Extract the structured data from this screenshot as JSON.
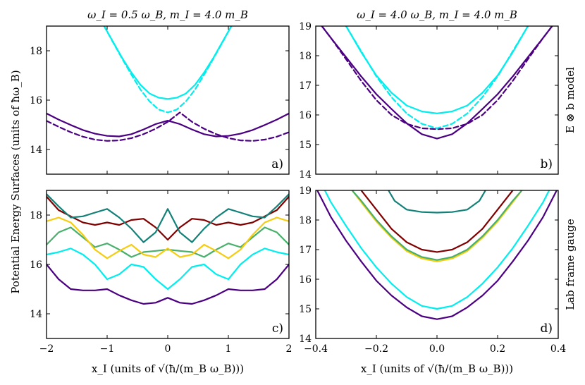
{
  "colors": {
    "purple": "#4b0082",
    "cyan": "#00eeee",
    "teal": "#138178",
    "darkred": "#800000",
    "gold": "#f5cc10",
    "green": "#48b06b"
  },
  "figure": {
    "column_titles": [
      "ω_I = 0.5 ω_B, m_I = 4.0 m_B",
      "ω_I = 4.0 ω_B, m_I = 4.0 m_B"
    ],
    "ylabel": "Potential Energy Surfaces (units of ħω_B)",
    "xlabels": [
      "x_I (units of √(ħ/(m_B ω_B)))",
      "x_I (units of √(ħ/(m_B ω_B)))"
    ],
    "row_labels": [
      "E ⊗ b model",
      "Lab frame gauge"
    ]
  },
  "chart_data": [
    {
      "type": "line",
      "panel_label": "a)",
      "xlim": [
        -2,
        2
      ],
      "ylim": [
        13,
        19
      ],
      "xticks": [
        -2,
        -1,
        0,
        1,
        2
      ],
      "xtick_labels": [],
      "yticks": [
        14,
        16,
        18
      ],
      "ytick_labels": [
        "14",
        "16",
        "18"
      ],
      "series": [
        {
          "color": "purple",
          "dash": false,
          "x": [
            -2,
            -1.8,
            -1.6,
            -1.4,
            -1.2,
            -1,
            -0.8,
            -0.6,
            -0.4,
            -0.2,
            0,
            0.2,
            0.4,
            0.6,
            0.8,
            1,
            1.2,
            1.4,
            1.6,
            1.8,
            2
          ],
          "y": [
            15.46,
            15.21,
            14.99,
            14.79,
            14.64,
            14.55,
            14.53,
            14.62,
            14.81,
            15.03,
            15.17,
            15.03,
            14.81,
            14.62,
            14.53,
            14.55,
            14.64,
            14.79,
            14.99,
            15.21,
            15.46
          ]
        },
        {
          "color": "purple",
          "dash": true,
          "x": [
            -2,
            -1.8,
            -1.6,
            -1.4,
            -1.2,
            -1,
            -0.8,
            -0.6,
            -0.4,
            -0.2,
            0,
            0.2,
            0.4,
            0.6,
            0.8,
            1,
            1.2,
            1.4,
            1.6,
            1.8,
            2
          ],
          "y": [
            15.16,
            14.92,
            14.7,
            14.52,
            14.4,
            14.35,
            14.37,
            14.46,
            14.62,
            14.84,
            15.12,
            15.5,
            15.12,
            14.84,
            14.62,
            14.46,
            14.37,
            14.35,
            14.4,
            14.52,
            14.7
          ]
        },
        {
          "color": "cyan",
          "dash": false,
          "x": [
            -1.05,
            -0.9,
            -0.75,
            -0.6,
            -0.45,
            -0.3,
            -0.15,
            0,
            0.15,
            0.3,
            0.45,
            0.6,
            0.75,
            0.9,
            1.05
          ],
          "y": [
            19,
            18.35,
            17.7,
            17.12,
            16.62,
            16.27,
            16.1,
            16.05,
            16.1,
            16.27,
            16.62,
            17.12,
            17.7,
            18.35,
            19
          ]
        },
        {
          "color": "cyan",
          "dash": true,
          "x": [
            -1.05,
            -0.9,
            -0.75,
            -0.6,
            -0.45,
            -0.3,
            -0.15,
            0,
            0.15,
            0.3,
            0.45,
            0.6,
            0.75,
            0.9,
            1.05
          ],
          "y": [
            19,
            18.33,
            17.67,
            17.03,
            16.43,
            15.95,
            15.62,
            15.5,
            15.62,
            15.95,
            16.43,
            17.03,
            17.67,
            18.33,
            19
          ]
        }
      ]
    },
    {
      "type": "line",
      "panel_label": "b)",
      "xlim": [
        -0.4,
        0.4
      ],
      "ylim": [
        14,
        19
      ],
      "xticks": [
        -0.4,
        -0.2,
        0,
        0.2,
        0.4
      ],
      "xtick_labels": [],
      "yticks": [
        14,
        15,
        16,
        17,
        18,
        19
      ],
      "ytick_labels": [
        "14",
        "15",
        "16",
        "17",
        "18",
        "19"
      ],
      "series": [
        {
          "color": "purple",
          "dash": false,
          "x": [
            -0.38,
            -0.35,
            -0.3,
            -0.25,
            -0.2,
            -0.15,
            -0.1,
            -0.05,
            0,
            0.05,
            0.1,
            0.15,
            0.2,
            0.25,
            0.3,
            0.35,
            0.38
          ],
          "y": [
            19,
            18.6,
            17.95,
            17.3,
            16.7,
            16.2,
            15.72,
            15.35,
            15.2,
            15.35,
            15.72,
            16.2,
            16.7,
            17.3,
            17.95,
            18.6,
            19
          ]
        },
        {
          "color": "purple",
          "dash": true,
          "x": [
            -0.38,
            -0.35,
            -0.3,
            -0.25,
            -0.2,
            -0.15,
            -0.1,
            -0.05,
            0,
            0.05,
            0.1,
            0.15,
            0.2,
            0.25,
            0.3,
            0.35,
            0.38
          ],
          "y": [
            19,
            18.6,
            17.88,
            17.15,
            16.5,
            16.0,
            15.7,
            15.55,
            15.52,
            15.55,
            15.7,
            16.0,
            16.5,
            17.15,
            17.88,
            18.6,
            19
          ]
        },
        {
          "color": "cyan",
          "dash": false,
          "x": [
            -0.3,
            -0.25,
            -0.2,
            -0.15,
            -0.1,
            -0.05,
            0,
            0.05,
            0.1,
            0.15,
            0.2,
            0.25,
            0.3
          ],
          "y": [
            19,
            18.12,
            17.33,
            16.75,
            16.32,
            16.12,
            16.05,
            16.12,
            16.32,
            16.75,
            17.33,
            18.12,
            19
          ]
        },
        {
          "color": "cyan",
          "dash": true,
          "x": [
            -0.3,
            -0.25,
            -0.2,
            -0.15,
            -0.1,
            -0.05,
            0,
            0.05,
            0.1,
            0.15,
            0.2,
            0.25,
            0.3
          ],
          "y": [
            19,
            18.15,
            17.3,
            16.6,
            16.05,
            15.7,
            15.55,
            15.7,
            16.05,
            16.6,
            17.3,
            18.15,
            19
          ]
        }
      ]
    },
    {
      "type": "line",
      "panel_label": "c)",
      "xlim": [
        -2,
        2
      ],
      "ylim": [
        13,
        19
      ],
      "xticks": [
        -2,
        -1,
        0,
        1,
        2
      ],
      "xtick_labels": [
        "−2",
        "−1",
        "0",
        "1",
        "2"
      ],
      "yticks": [
        14,
        16,
        18
      ],
      "ytick_labels": [
        "14",
        "16",
        "18"
      ],
      "series": [
        {
          "color": "purple",
          "dash": false,
          "x": [
            -2,
            -1.8,
            -1.6,
            -1.4,
            -1.2,
            -1,
            -0.8,
            -0.6,
            -0.4,
            -0.2,
            0,
            0.2,
            0.4,
            0.6,
            0.8,
            1,
            1.2,
            1.4,
            1.6,
            1.8,
            2
          ],
          "y": [
            16,
            15.4,
            15.0,
            14.95,
            14.95,
            15.0,
            14.75,
            14.55,
            14.4,
            14.45,
            14.65,
            14.45,
            14.4,
            14.55,
            14.75,
            15.0,
            14.95,
            14.95,
            15.0,
            15.4,
            16
          ]
        },
        {
          "color": "cyan",
          "dash": false,
          "x": [
            -2,
            -1.8,
            -1.6,
            -1.4,
            -1.2,
            -1,
            -0.8,
            -0.6,
            -0.4,
            -0.2,
            0,
            0.2,
            0.4,
            0.6,
            0.8,
            1,
            1.2,
            1.4,
            1.6,
            1.8,
            2
          ],
          "y": [
            16.4,
            16.5,
            16.65,
            16.4,
            16.0,
            15.4,
            15.6,
            16.0,
            15.9,
            15.4,
            15.0,
            15.4,
            15.9,
            16.0,
            15.6,
            15.4,
            16.0,
            16.4,
            16.65,
            16.5,
            16.4
          ]
        },
        {
          "color": "green",
          "dash": false,
          "x": [
            -2,
            -1.8,
            -1.6,
            -1.4,
            -1.2,
            -1,
            -0.8,
            -0.6,
            -0.4,
            -0.2,
            0,
            0.2,
            0.4,
            0.6,
            0.8,
            1,
            1.2,
            1.4,
            1.6,
            1.8,
            2
          ],
          "y": [
            16.8,
            17.3,
            17.5,
            17.1,
            16.7,
            16.85,
            16.6,
            16.3,
            16.5,
            16.55,
            16.6,
            16.55,
            16.5,
            16.3,
            16.6,
            16.85,
            16.7,
            17.1,
            17.5,
            17.3,
            16.8
          ]
        },
        {
          "color": "gold",
          "dash": false,
          "x": [
            -2,
            -1.8,
            -1.6,
            -1.4,
            -1.2,
            -1,
            -0.8,
            -0.6,
            -0.4,
            -0.2,
            0,
            0.2,
            0.4,
            0.6,
            0.8,
            1,
            1.2,
            1.4,
            1.6,
            1.8,
            2
          ],
          "y": [
            17.75,
            17.9,
            17.7,
            17.2,
            16.6,
            16.25,
            16.55,
            16.8,
            16.4,
            16.3,
            16.65,
            16.3,
            16.4,
            16.8,
            16.55,
            16.25,
            16.6,
            17.2,
            17.7,
            17.9,
            17.75
          ]
        },
        {
          "color": "darkred",
          "dash": false,
          "x": [
            -2,
            -1.8,
            -1.6,
            -1.4,
            -1.2,
            -1,
            -0.8,
            -0.6,
            -0.4,
            -0.2,
            0,
            0.2,
            0.4,
            0.6,
            0.8,
            1,
            1.2,
            1.4,
            1.6,
            1.8,
            2
          ],
          "y": [
            18.75,
            18.2,
            17.95,
            17.7,
            17.6,
            17.7,
            17.6,
            17.8,
            17.85,
            17.5,
            17.0,
            17.5,
            17.85,
            17.8,
            17.6,
            17.7,
            17.6,
            17.7,
            17.95,
            18.2,
            18.75
          ]
        },
        {
          "color": "teal",
          "dash": false,
          "x": [
            -2,
            -1.8,
            -1.6,
            -1.4,
            -1.2,
            -1,
            -0.8,
            -0.6,
            -0.4,
            -0.2,
            0,
            0.2,
            0.4,
            0.6,
            0.8,
            1,
            1.2,
            1.4,
            1.6,
            1.8,
            2
          ],
          "y": [
            18.85,
            18.35,
            17.9,
            17.95,
            18.1,
            18.25,
            17.9,
            17.45,
            16.9,
            17.3,
            18.25,
            17.3,
            16.9,
            17.45,
            17.9,
            18.25,
            18.1,
            17.95,
            17.9,
            18.35,
            18.85
          ]
        }
      ]
    },
    {
      "type": "line",
      "panel_label": "d)",
      "xlim": [
        -0.4,
        0.4
      ],
      "ylim": [
        14,
        19
      ],
      "xticks": [
        -0.4,
        -0.2,
        0,
        0.2,
        0.4
      ],
      "xtick_labels": [
        "−0.4",
        "−0.2",
        "0.0",
        "0.2",
        "0.4"
      ],
      "yticks": [
        14,
        15,
        16,
        17,
        18,
        19
      ],
      "ytick_labels": [
        "14",
        "15",
        "16",
        "17",
        "18",
        "19"
      ],
      "series": [
        {
          "color": "purple",
          "dash": false,
          "x": [
            -0.4,
            -0.35,
            -0.3,
            -0.25,
            -0.2,
            -0.15,
            -0.1,
            -0.05,
            0,
            0.05,
            0.1,
            0.15,
            0.2,
            0.25,
            0.3,
            0.35,
            0.4
          ],
          "y": [
            19.1,
            18.1,
            17.3,
            16.6,
            15.95,
            15.45,
            15.05,
            14.75,
            14.65,
            14.75,
            15.05,
            15.45,
            15.95,
            16.6,
            17.3,
            18.1,
            19.1
          ]
        },
        {
          "color": "cyan",
          "dash": false,
          "x": [
            -0.37,
            -0.35,
            -0.3,
            -0.25,
            -0.2,
            -0.15,
            -0.1,
            -0.05,
            0,
            0.05,
            0.1,
            0.15,
            0.2,
            0.25,
            0.3,
            0.35,
            0.37
          ],
          "y": [
            19,
            18.6,
            17.8,
            17.05,
            16.4,
            15.85,
            15.4,
            15.1,
            15.0,
            15.1,
            15.4,
            15.85,
            16.4,
            17.05,
            17.8,
            18.6,
            19
          ]
        },
        {
          "color": "gold",
          "dash": false,
          "x": [
            -0.28,
            -0.25,
            -0.2,
            -0.15,
            -0.1,
            -0.05,
            0,
            0.05,
            0.1,
            0.15,
            0.2,
            0.25,
            0.28
          ],
          "y": [
            19,
            18.6,
            17.95,
            17.4,
            16.95,
            16.7,
            16.6,
            16.7,
            16.95,
            17.4,
            17.95,
            18.6,
            19
          ]
        },
        {
          "color": "green",
          "dash": false,
          "x": [
            -0.28,
            -0.25,
            -0.2,
            -0.15,
            -0.1,
            -0.05,
            0,
            0.05,
            0.1,
            0.15,
            0.2,
            0.25,
            0.28
          ],
          "y": [
            19,
            18.65,
            18.0,
            17.45,
            17.0,
            16.75,
            16.65,
            16.75,
            17.0,
            17.45,
            18.0,
            18.65,
            19
          ]
        },
        {
          "color": "darkred",
          "dash": false,
          "x": [
            -0.25,
            -0.2,
            -0.15,
            -0.1,
            -0.05,
            0,
            0.05,
            0.1,
            0.15,
            0.2,
            0.25
          ],
          "y": [
            19,
            18.35,
            17.7,
            17.25,
            17.0,
            16.92,
            17.0,
            17.25,
            17.7,
            18.35,
            19
          ]
        },
        {
          "color": "teal",
          "dash": false,
          "x": [
            -0.16,
            -0.14,
            -0.1,
            -0.05,
            0,
            0.05,
            0.1,
            0.14,
            0.16
          ],
          "y": [
            19,
            18.65,
            18.35,
            18.27,
            18.25,
            18.27,
            18.35,
            18.65,
            19
          ]
        }
      ]
    }
  ]
}
